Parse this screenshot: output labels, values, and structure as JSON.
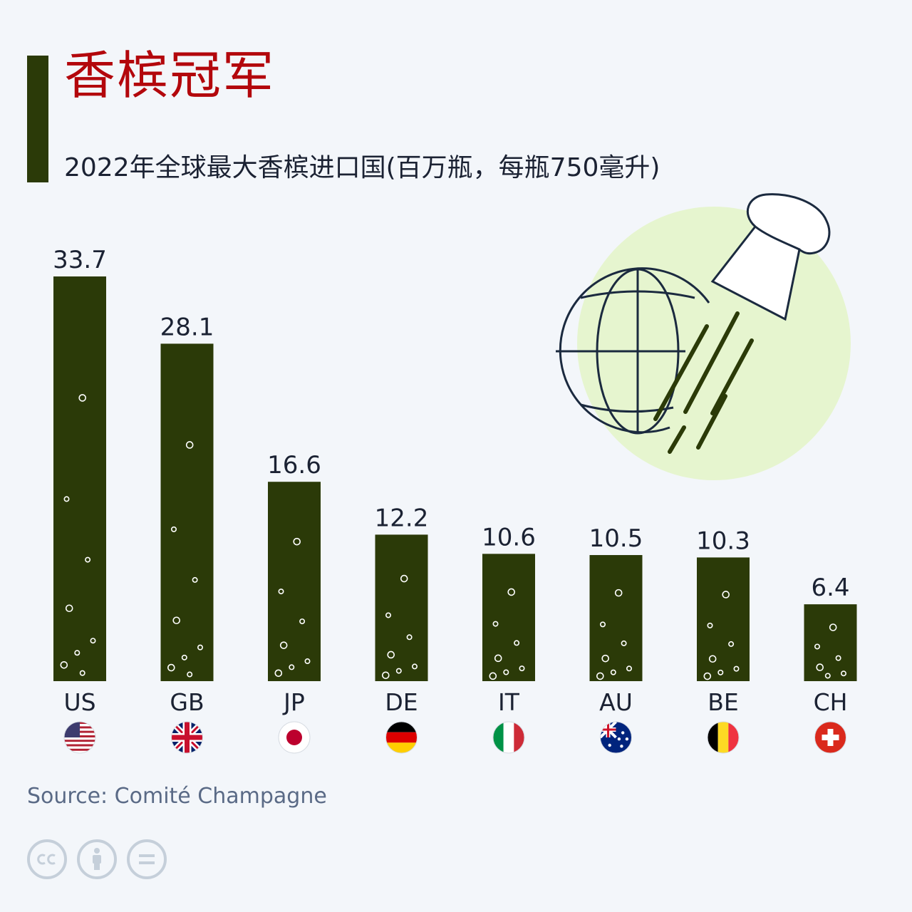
{
  "header": {
    "title": "香槟冠军",
    "subtitle": "2022年全球最大香槟进口国(百万瓶，每瓶750毫升)"
  },
  "footer": {
    "source": "Source: Comité Champagne"
  },
  "colors": {
    "bar": "#2b3a08",
    "title": "#b3070c",
    "text": "#1b2233",
    "illustration_circle": "#e6f5cf",
    "illustration_line": "#1b2a3f"
  },
  "chart_data": {
    "type": "bar",
    "categories": [
      "US",
      "GB",
      "JP",
      "DE",
      "IT",
      "AU",
      "BE",
      "CH"
    ],
    "values": [
      33.7,
      28.1,
      16.6,
      12.2,
      10.6,
      10.5,
      10.3,
      6.4
    ],
    "value_labels": [
      "33.7",
      "28.1",
      "16.6",
      "12.2",
      "10.6",
      "10.5",
      "10.3",
      "6.4"
    ],
    "flags": [
      "us-flag-icon",
      "gb-flag-icon",
      "jp-flag-icon",
      "de-flag-icon",
      "it-flag-icon",
      "au-flag-icon",
      "be-flag-icon",
      "ch-flag-icon"
    ],
    "title": "2022年全球最大香槟进口国(百万瓶，每瓶750毫升)",
    "xlabel": "",
    "ylabel": "",
    "grid": false,
    "ylim": [
      0,
      33.7
    ]
  }
}
